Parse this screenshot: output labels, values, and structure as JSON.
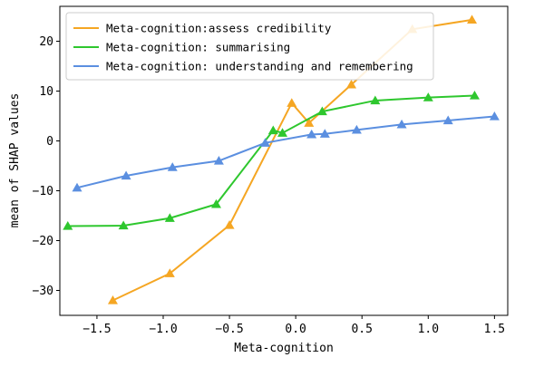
{
  "chart_data": {
    "type": "line",
    "title": "",
    "xlabel": "Meta-cognition",
    "ylabel": "mean of SHAP values",
    "xlim": [
      -1.78,
      1.6
    ],
    "ylim": [
      -35,
      27
    ],
    "xticks": [
      -1.5,
      -1.0,
      -0.5,
      0.0,
      0.5,
      1.0,
      1.5
    ],
    "xtick_labels": [
      "−1.5",
      "−1.0",
      "−0.5",
      "0.0",
      "0.5",
      "1.0",
      "1.5"
    ],
    "yticks": [
      -30,
      -20,
      -10,
      0,
      10,
      20
    ],
    "ytick_labels": [
      "−30",
      "−20",
      "−10",
      "0",
      "10",
      "20"
    ],
    "grid": false,
    "legend_position": "top-left",
    "series": [
      {
        "name": "Meta-cognition:assess credibility",
        "color": "#f5a623",
        "marker": "triangle",
        "x": [
          -1.38,
          -0.95,
          -0.5,
          -0.03,
          0.1,
          0.42,
          0.88,
          1.33
        ],
        "y": [
          -32,
          -26.6,
          -16.9,
          7.6,
          3.6,
          11.3,
          22.4,
          24.3
        ]
      },
      {
        "name": "Meta-cognition: summarising",
        "color": "#2ec72e",
        "marker": "triangle",
        "x": [
          -1.72,
          -1.3,
          -0.95,
          -0.6,
          -0.17,
          -0.1,
          0.2,
          0.6,
          1.0,
          1.35
        ],
        "y": [
          -17.1,
          -17.0,
          -15.5,
          -12.7,
          2.1,
          1.6,
          5.9,
          8.1,
          8.7,
          9.1
        ]
      },
      {
        "name": "Meta-cognition: understanding and remembering",
        "color": "#5b8fe0",
        "marker": "triangle",
        "x": [
          -1.65,
          -1.28,
          -0.93,
          -0.58,
          -0.23,
          0.12,
          0.22,
          0.46,
          0.8,
          1.15,
          1.5
        ],
        "y": [
          -9.4,
          -7.0,
          -5.3,
          -4.0,
          -0.4,
          1.3,
          1.4,
          2.2,
          3.3,
          4.1,
          4.9
        ]
      }
    ]
  }
}
